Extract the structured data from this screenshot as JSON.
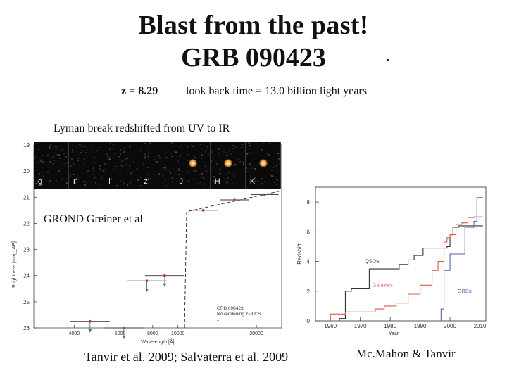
{
  "slide": {
    "title_line1": "Blast from the past!",
    "title_line2": "GRB 090423",
    "title_dot": ".",
    "redshift_text": "z = 8.29",
    "lookback_text": "look back time = 13.0  billion light years",
    "lyman_text": "Lyman break redshifted from UV to IR",
    "grond_label": "GROND  Greiner et al",
    "left_citation": "Tanvir et al. 2009; Salvaterra et al. 2009",
    "right_citation": "Mc.Mahon & Tanvir"
  },
  "stamps": {
    "bands": [
      "g",
      "r'",
      "i'",
      "z'",
      "J",
      "H",
      "K"
    ],
    "source_visible": [
      false,
      false,
      false,
      false,
      true,
      true,
      true
    ]
  },
  "chart_data": [
    {
      "type": "scatter",
      "title": "",
      "xlabel": "Wavelength [Å]",
      "ylabel": "Brightness [mag_AB]",
      "xlim": [
        2800,
        25000
      ],
      "ylim": [
        26,
        19
      ],
      "x_ticks": [
        "4000",
        "6000",
        "8000",
        "10000",
        "20000"
      ],
      "y_ticks": [
        "19",
        "20",
        "21",
        "22",
        "23",
        "24",
        "25",
        "26"
      ],
      "detections": [
        {
          "x": 12500,
          "y": 21.5
        },
        {
          "x": 16500,
          "y": 21.1
        },
        {
          "x": 21500,
          "y": 20.9
        }
      ],
      "upper_limits": [
        {
          "x": 4600,
          "y": 25.75
        },
        {
          "x": 6200,
          "y": 26.0
        },
        {
          "x": 7600,
          "y": 24.2
        },
        {
          "x": 8900,
          "y": 24.0
        }
      ],
      "legend": [
        "GRB 090423",
        "No reddening z~8 CS...",
        "..."
      ],
      "legend_position": "bottom-right"
    },
    {
      "type": "line",
      "title": "",
      "xlabel": "Year",
      "ylabel": "Redshift",
      "xlim": [
        1955,
        2012
      ],
      "ylim": [
        0,
        9
      ],
      "x_ticks": [
        "1960",
        "1970",
        "1980",
        "1990",
        "2000",
        "2010"
      ],
      "y_ticks": [
        "0",
        "2",
        "4",
        "6",
        "8"
      ],
      "series": [
        {
          "name": "QSOs",
          "color": "#333333",
          "x": [
            1963,
            1965,
            1967,
            1973,
            1975,
            1983,
            1986,
            1988,
            1991,
            1999,
            2000,
            2001,
            2003,
            2006,
            2008
          ],
          "y": [
            0.16,
            2.0,
            2.2,
            3.5,
            3.5,
            3.8,
            4.1,
            4.4,
            4.9,
            5.0,
            5.8,
            6.3,
            6.4,
            6.4,
            6.4
          ]
        },
        {
          "name": "Galaxies",
          "color": "#d65a4a",
          "x": [
            1960,
            1965,
            1975,
            1978,
            1982,
            1986,
            1990,
            1994,
            1996,
            1998,
            1999,
            2000,
            2002,
            2004,
            2006,
            2008
          ],
          "y": [
            0.46,
            0.6,
            0.8,
            1.0,
            1.2,
            1.8,
            2.4,
            3.4,
            4.0,
            5.3,
            5.6,
            5.8,
            6.5,
            6.6,
            6.96,
            7.0
          ]
        },
        {
          "name": "GRBs",
          "color": "#5566aa",
          "x": [
            1997,
            1998,
            2000,
            2004,
            2005,
            2008,
            2009
          ],
          "y": [
            0.8,
            3.4,
            4.5,
            4.5,
            6.3,
            6.7,
            8.3
          ]
        }
      ]
    }
  ]
}
